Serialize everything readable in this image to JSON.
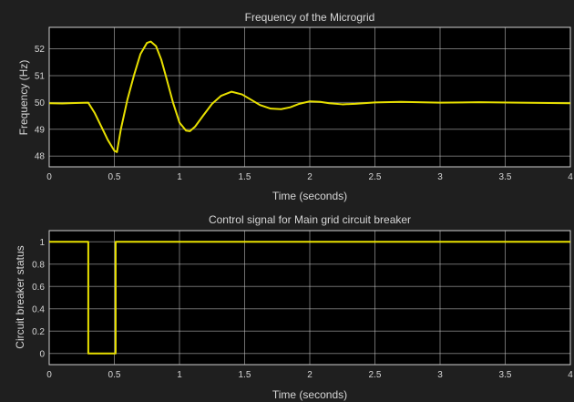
{
  "chart_data": [
    {
      "type": "line",
      "title": "Frequency of the Microgrid",
      "xlabel": "Time (seconds)",
      "ylabel": "Frequency (Hz)",
      "xlim": [
        0,
        4
      ],
      "ylim": [
        47.6,
        52.8
      ],
      "xticks": [
        0,
        0.5,
        1,
        1.5,
        2,
        2.5,
        3,
        3.5,
        4
      ],
      "xtick_labels": [
        "0",
        "0.5",
        "1",
        "1.5",
        "2",
        "2.5",
        "3",
        "3.5",
        "4"
      ],
      "yticks": [
        48,
        49,
        50,
        51,
        52
      ],
      "ytick_labels": [
        "48",
        "49",
        "50",
        "51",
        "52"
      ],
      "grid": true,
      "series": [
        {
          "color": "#e8e000",
          "x": [
            0,
            0.1,
            0.2,
            0.3,
            0.35,
            0.4,
            0.45,
            0.5,
            0.52,
            0.55,
            0.6,
            0.65,
            0.7,
            0.75,
            0.78,
            0.82,
            0.86,
            0.9,
            0.95,
            1.0,
            1.05,
            1.08,
            1.12,
            1.18,
            1.25,
            1.32,
            1.4,
            1.48,
            1.55,
            1.62,
            1.7,
            1.78,
            1.85,
            1.92,
            2.0,
            2.08,
            2.15,
            2.25,
            2.35,
            2.5,
            2.7,
            3.0,
            3.3,
            3.6,
            4.0
          ],
          "y": [
            49.97,
            49.96,
            49.98,
            49.99,
            49.6,
            49.1,
            48.6,
            48.2,
            48.15,
            49.0,
            50.1,
            51.0,
            51.8,
            52.22,
            52.27,
            52.1,
            51.6,
            50.9,
            50.0,
            49.25,
            48.95,
            48.93,
            49.1,
            49.5,
            49.95,
            50.25,
            50.4,
            50.3,
            50.1,
            49.9,
            49.77,
            49.75,
            49.82,
            49.95,
            50.04,
            50.02,
            49.97,
            49.93,
            49.95,
            50.0,
            50.02,
            49.99,
            50.01,
            49.99,
            49.97
          ]
        }
      ]
    },
    {
      "type": "line",
      "title": "Control signal for Main grid circuit breaker",
      "xlabel": "Time (seconds)",
      "ylabel": "Circuit breaker status",
      "xlim": [
        0,
        4
      ],
      "ylim": [
        -0.1,
        1.1
      ],
      "xticks": [
        0,
        0.5,
        1,
        1.5,
        2,
        2.5,
        3,
        3.5,
        4
      ],
      "xtick_labels": [
        "0",
        "0.5",
        "1",
        "1.5",
        "2",
        "2.5",
        "3",
        "3.5",
        "4"
      ],
      "yticks": [
        0,
        0.2,
        0.4,
        0.6,
        0.8,
        1
      ],
      "ytick_labels": [
        "0",
        "0.2",
        "0.4",
        "0.6",
        "0.8",
        "1"
      ],
      "grid": true,
      "series": [
        {
          "color": "#e8e000",
          "x": [
            0,
            0.3,
            0.3,
            0.51,
            0.51,
            4.0
          ],
          "y": [
            1,
            1,
            0,
            0,
            1,
            1
          ]
        }
      ]
    }
  ]
}
